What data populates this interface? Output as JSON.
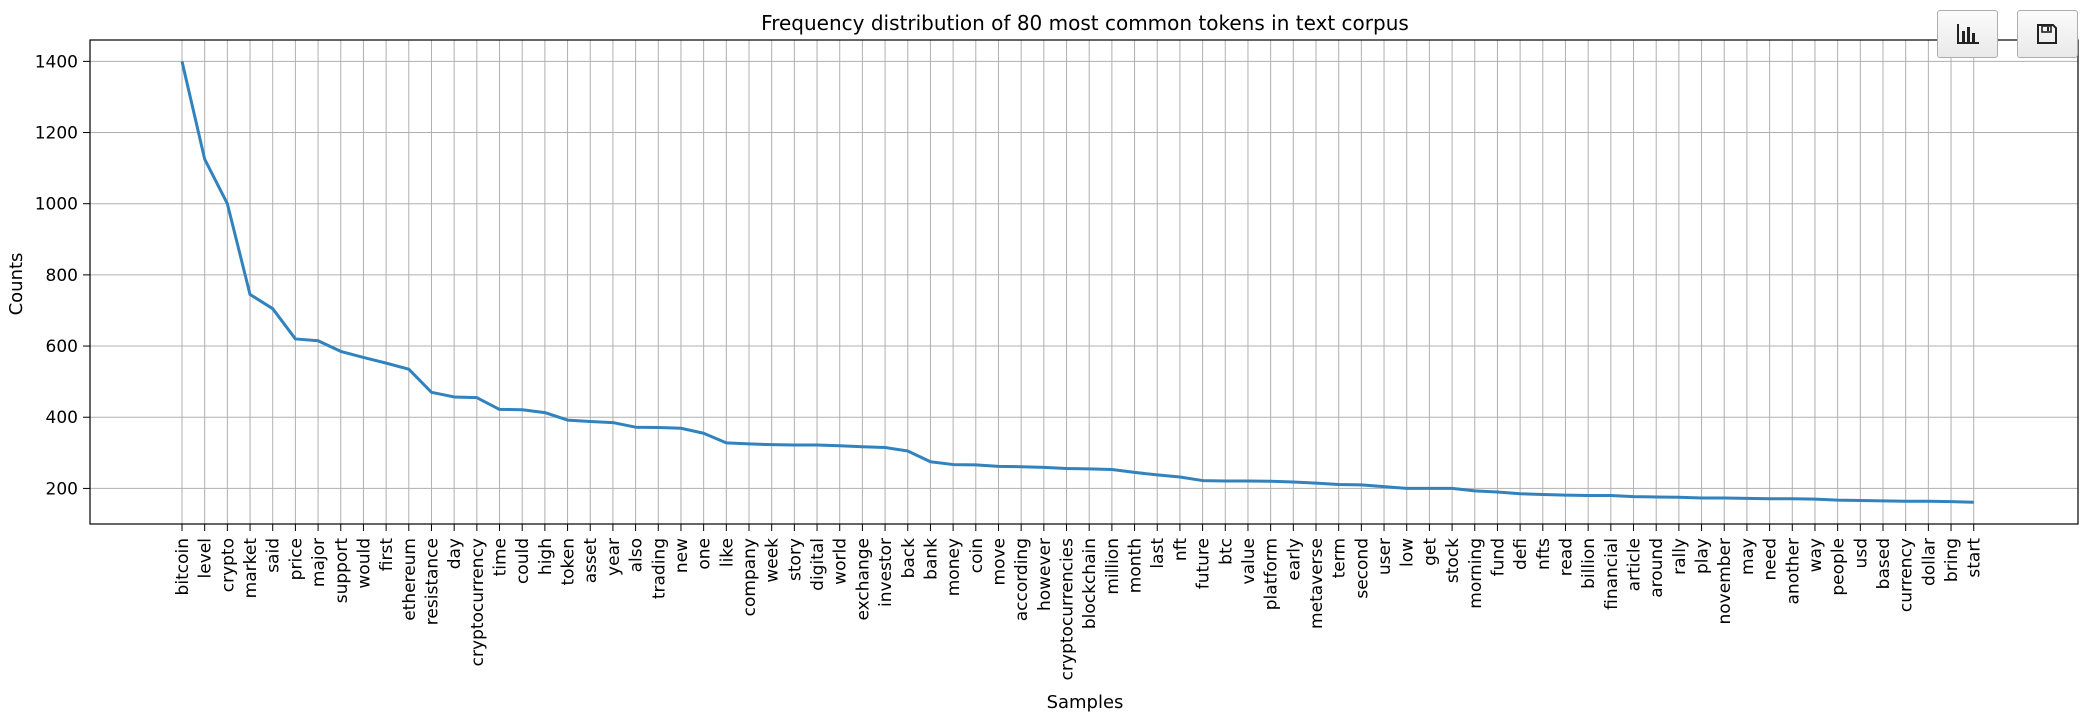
{
  "toolbar": {
    "chart_icon": "bar-chart-icon",
    "save_icon": "floppy-disk-icon"
  },
  "chart_data": {
    "type": "line",
    "title": "Frequency distribution of 80 most common tokens in text corpus",
    "xlabel": "Samples",
    "ylabel": "Counts",
    "ylim": [
      100,
      1460
    ],
    "yticks": [
      200,
      400,
      600,
      800,
      1000,
      1200,
      1400
    ],
    "grid": true,
    "line_color": "#3182bd",
    "categories": [
      "bitcoin",
      "level",
      "crypto",
      "market",
      "said",
      "price",
      "major",
      "support",
      "would",
      "first",
      "ethereum",
      "resistance",
      "day",
      "cryptocurrency",
      "time",
      "could",
      "high",
      "token",
      "asset",
      "year",
      "also",
      "trading",
      "new",
      "one",
      "like",
      "company",
      "week",
      "story",
      "digital",
      "world",
      "exchange",
      "investor",
      "back",
      "bank",
      "money",
      "coin",
      "move",
      "according",
      "however",
      "cryptocurrencies",
      "blockchain",
      "million",
      "month",
      "last",
      "nft",
      "future",
      "btc",
      "value",
      "platform",
      "early",
      "metaverse",
      "term",
      "second",
      "user",
      "low",
      "get",
      "stock",
      "morning",
      "fund",
      "defi",
      "nfts",
      "read",
      "billion",
      "financial",
      "article",
      "around",
      "rally",
      "play",
      "november",
      "may",
      "need",
      "another",
      "way",
      "people",
      "usd",
      "based",
      "currency",
      "dollar",
      "bring",
      "start"
    ],
    "values": [
      1400,
      1125,
      1000,
      745,
      705,
      620,
      615,
      585,
      568,
      552,
      535,
      470,
      457,
      455,
      422,
      421,
      413,
      392,
      388,
      385,
      372,
      371,
      369,
      355,
      328,
      325,
      323,
      322,
      322,
      320,
      317,
      315,
      305,
      275,
      267,
      266,
      262,
      261,
      259,
      256,
      255,
      253,
      245,
      238,
      232,
      222,
      221,
      221,
      220,
      218,
      215,
      211,
      210,
      205,
      200,
      200,
      200,
      193,
      190,
      185,
      183,
      181,
      180,
      180,
      177,
      176,
      175,
      173,
      173,
      172,
      171,
      171,
      170,
      167,
      166,
      165,
      164,
      164,
      163,
      161
    ]
  }
}
